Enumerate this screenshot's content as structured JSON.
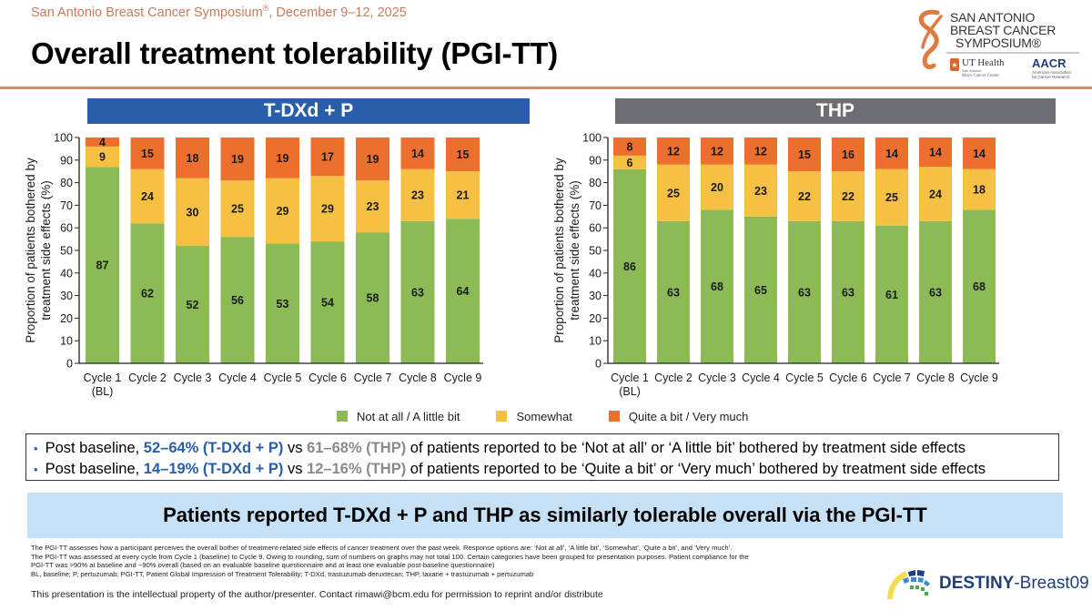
{
  "header": {
    "conference": "San Antonio Breast Cancer Symposium",
    "conference_mark": "®",
    "conference_dates": ", December 9–12, 2025",
    "title": "Overall treatment tolerability (PGI-TT)"
  },
  "logos": {
    "sabcs_lines": [
      "SAN ANTONIO",
      "BREAST CANCER",
      "SYMPOSIUM®"
    ],
    "ut_health": "UT Health",
    "ut_sub1": "San Antonio",
    "ut_sub2": "Mays Cancer Center",
    "aacr": "AACR",
    "aacr_sub1": "American Association",
    "aacr_sub2": "for Cancer Research",
    "trial_name_bold": "DESTINY",
    "trial_name_rest": "-Breast09"
  },
  "colors": {
    "not_at_all": "#8cbb56",
    "somewhat": "#f6c143",
    "quite_a_bit": "#ec6f2d",
    "arm_left": "#2a5ea8",
    "arm_right": "#6d6e71",
    "accent_rule": "#d9876a",
    "takeaway_bg": "#c6e0f5"
  },
  "chart_data": [
    {
      "type": "bar",
      "stacked": true,
      "title": "T-DXd + P",
      "categories": [
        "Cycle 1\n(BL)",
        "Cycle 2",
        "Cycle 3",
        "Cycle 4",
        "Cycle 5",
        "Cycle 6",
        "Cycle 7",
        "Cycle 8",
        "Cycle 9"
      ],
      "ylabel": "Proportion of patients bothered by treatment side effects (%)",
      "ylabel_lines": [
        "Proportion of patients bothered by",
        "treatment side effects (%)"
      ],
      "xlabel": "",
      "ylim": [
        0,
        100
      ],
      "yticks": [
        0,
        10,
        20,
        30,
        40,
        50,
        60,
        70,
        80,
        90,
        100
      ],
      "grid": false,
      "series": [
        {
          "name": "Not at all / A little bit",
          "values": [
            87,
            62,
            52,
            56,
            53,
            54,
            58,
            63,
            64
          ]
        },
        {
          "name": "Somewhat",
          "values": [
            9,
            24,
            30,
            25,
            29,
            29,
            23,
            23,
            21
          ]
        },
        {
          "name": "Quite a bit / Very much",
          "values": [
            4,
            15,
            18,
            19,
            19,
            17,
            19,
            14,
            15
          ]
        }
      ]
    },
    {
      "type": "bar",
      "stacked": true,
      "title": "THP",
      "categories": [
        "Cycle 1\n(BL)",
        "Cycle 2",
        "Cycle 3",
        "Cycle 4",
        "Cycle 5",
        "Cycle 6",
        "Cycle 7",
        "Cycle 8",
        "Cycle 9"
      ],
      "ylabel": "Proportion of patients bothered by treatment side effects (%)",
      "ylabel_lines": [
        "Proportion of patients bothered by",
        "treatment side effects (%)"
      ],
      "xlabel": "",
      "ylim": [
        0,
        100
      ],
      "yticks": [
        0,
        10,
        20,
        30,
        40,
        50,
        60,
        70,
        80,
        90,
        100
      ],
      "grid": false,
      "series": [
        {
          "name": "Not at all / A little bit",
          "values": [
            86,
            63,
            68,
            65,
            63,
            63,
            61,
            63,
            68
          ]
        },
        {
          "name": "Somewhat",
          "values": [
            6,
            25,
            20,
            23,
            22,
            22,
            25,
            24,
            18
          ]
        },
        {
          "name": "Quite a bit / Very much",
          "values": [
            8,
            12,
            12,
            12,
            15,
            16,
            14,
            14,
            14
          ]
        }
      ]
    }
  ],
  "legend": {
    "position": "bottom-center",
    "items": [
      "Not at all / A little bit",
      "Somewhat",
      "Quite a bit / Very much"
    ]
  },
  "bullets": [
    {
      "prefix": "Post baseline, ",
      "left_range": "52–64% (T-DXd + P)",
      "vs": " vs ",
      "right_range": "61–68% (THP)",
      "suffix": " of patients reported to be ‘Not at all’ or ‘A little bit’ bothered by treatment side effects"
    },
    {
      "prefix": "Post baseline, ",
      "left_range": "14–19% (T-DXd + P)",
      "vs": " vs ",
      "right_range": "12–16% (THP)",
      "suffix": " of patients reported to be ‘Quite a bit’ or ‘Very much’ bothered by treatment side effects"
    }
  ],
  "takeaway": "Patients reported T-DXd + P and THP as similarly tolerable overall via the PGI-TT",
  "footnotes": [
    "The PGI-TT assesses how a participant perceives the overall bother of treatment-related side effects of cancer treatment over the past week. Response options are: ‘Not at all’, ‘A little bit’, ‘Somewhat’, ‘Quite a bit’, and ‘Very much’.",
    "The PGI-TT was assessed at every cycle from Cycle 1 (baseline) to Cycle 9. Owing to rounding, sum of numbers on graphs may not total 100. Certain categories have been grouped for presentation purposes. Patient compliance for the",
    "PGI-TT was >90% at baseline and ~90% overall (based on an evaluable baseline questionnaire and at least one evaluable post-baseline questionnaire)",
    "BL, baseline; P, pertuzumab; PGI-TT, Patient Global Impression of Treatment Tolerability; T-DXd, trastuzumab deruxtecan; THP, taxane + trastuzumab + pertuzumab"
  ],
  "copyright": "This presentation is the intellectual property of the author/presenter. Contact rimawi@bcm.edu for permission to reprint and/or distribute"
}
